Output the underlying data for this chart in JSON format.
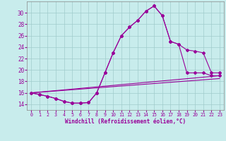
{
  "xlabel": "Windchill (Refroidissement éolien,°C)",
  "bg_color": "#c8ecec",
  "line_color": "#990099",
  "grid_color": "#a0cccc",
  "xlim": [
    -0.5,
    23.5
  ],
  "ylim": [
    13.0,
    32.0
  ],
  "xticks": [
    0,
    1,
    2,
    3,
    4,
    5,
    6,
    7,
    8,
    9,
    10,
    11,
    12,
    13,
    14,
    15,
    16,
    17,
    18,
    19,
    20,
    21,
    22,
    23
  ],
  "yticks": [
    14,
    16,
    18,
    20,
    22,
    24,
    26,
    28,
    30
  ],
  "curve1_x": [
    0,
    1,
    2,
    3,
    4,
    5,
    6,
    7,
    8,
    9,
    10,
    11,
    12,
    13,
    14,
    15,
    16,
    17,
    18,
    19,
    20,
    21,
    22,
    23
  ],
  "curve1_y": [
    16.0,
    15.7,
    15.4,
    15.0,
    14.5,
    14.2,
    14.2,
    14.3,
    16.0,
    19.5,
    23.0,
    26.0,
    27.5,
    28.7,
    30.3,
    31.2,
    29.5,
    25.0,
    24.5,
    19.5,
    19.5,
    19.5,
    19.0,
    19.0
  ],
  "curve2_x": [
    0,
    1,
    2,
    3,
    4,
    5,
    6,
    7,
    8,
    9,
    10,
    11,
    12,
    13,
    14,
    15,
    16,
    17,
    18,
    19,
    20,
    21,
    22,
    23
  ],
  "curve2_y": [
    16.0,
    15.7,
    15.4,
    15.0,
    14.5,
    14.2,
    14.2,
    14.3,
    16.0,
    19.5,
    23.0,
    26.0,
    27.5,
    28.7,
    30.3,
    31.2,
    29.5,
    25.0,
    24.5,
    23.5,
    23.3,
    23.0,
    19.5,
    19.5
  ],
  "line3_x": [
    0,
    23
  ],
  "line3_y": [
    16.0,
    19.0
  ],
  "line4_x": [
    0,
    23
  ],
  "line4_y": [
    16.0,
    18.5
  ]
}
